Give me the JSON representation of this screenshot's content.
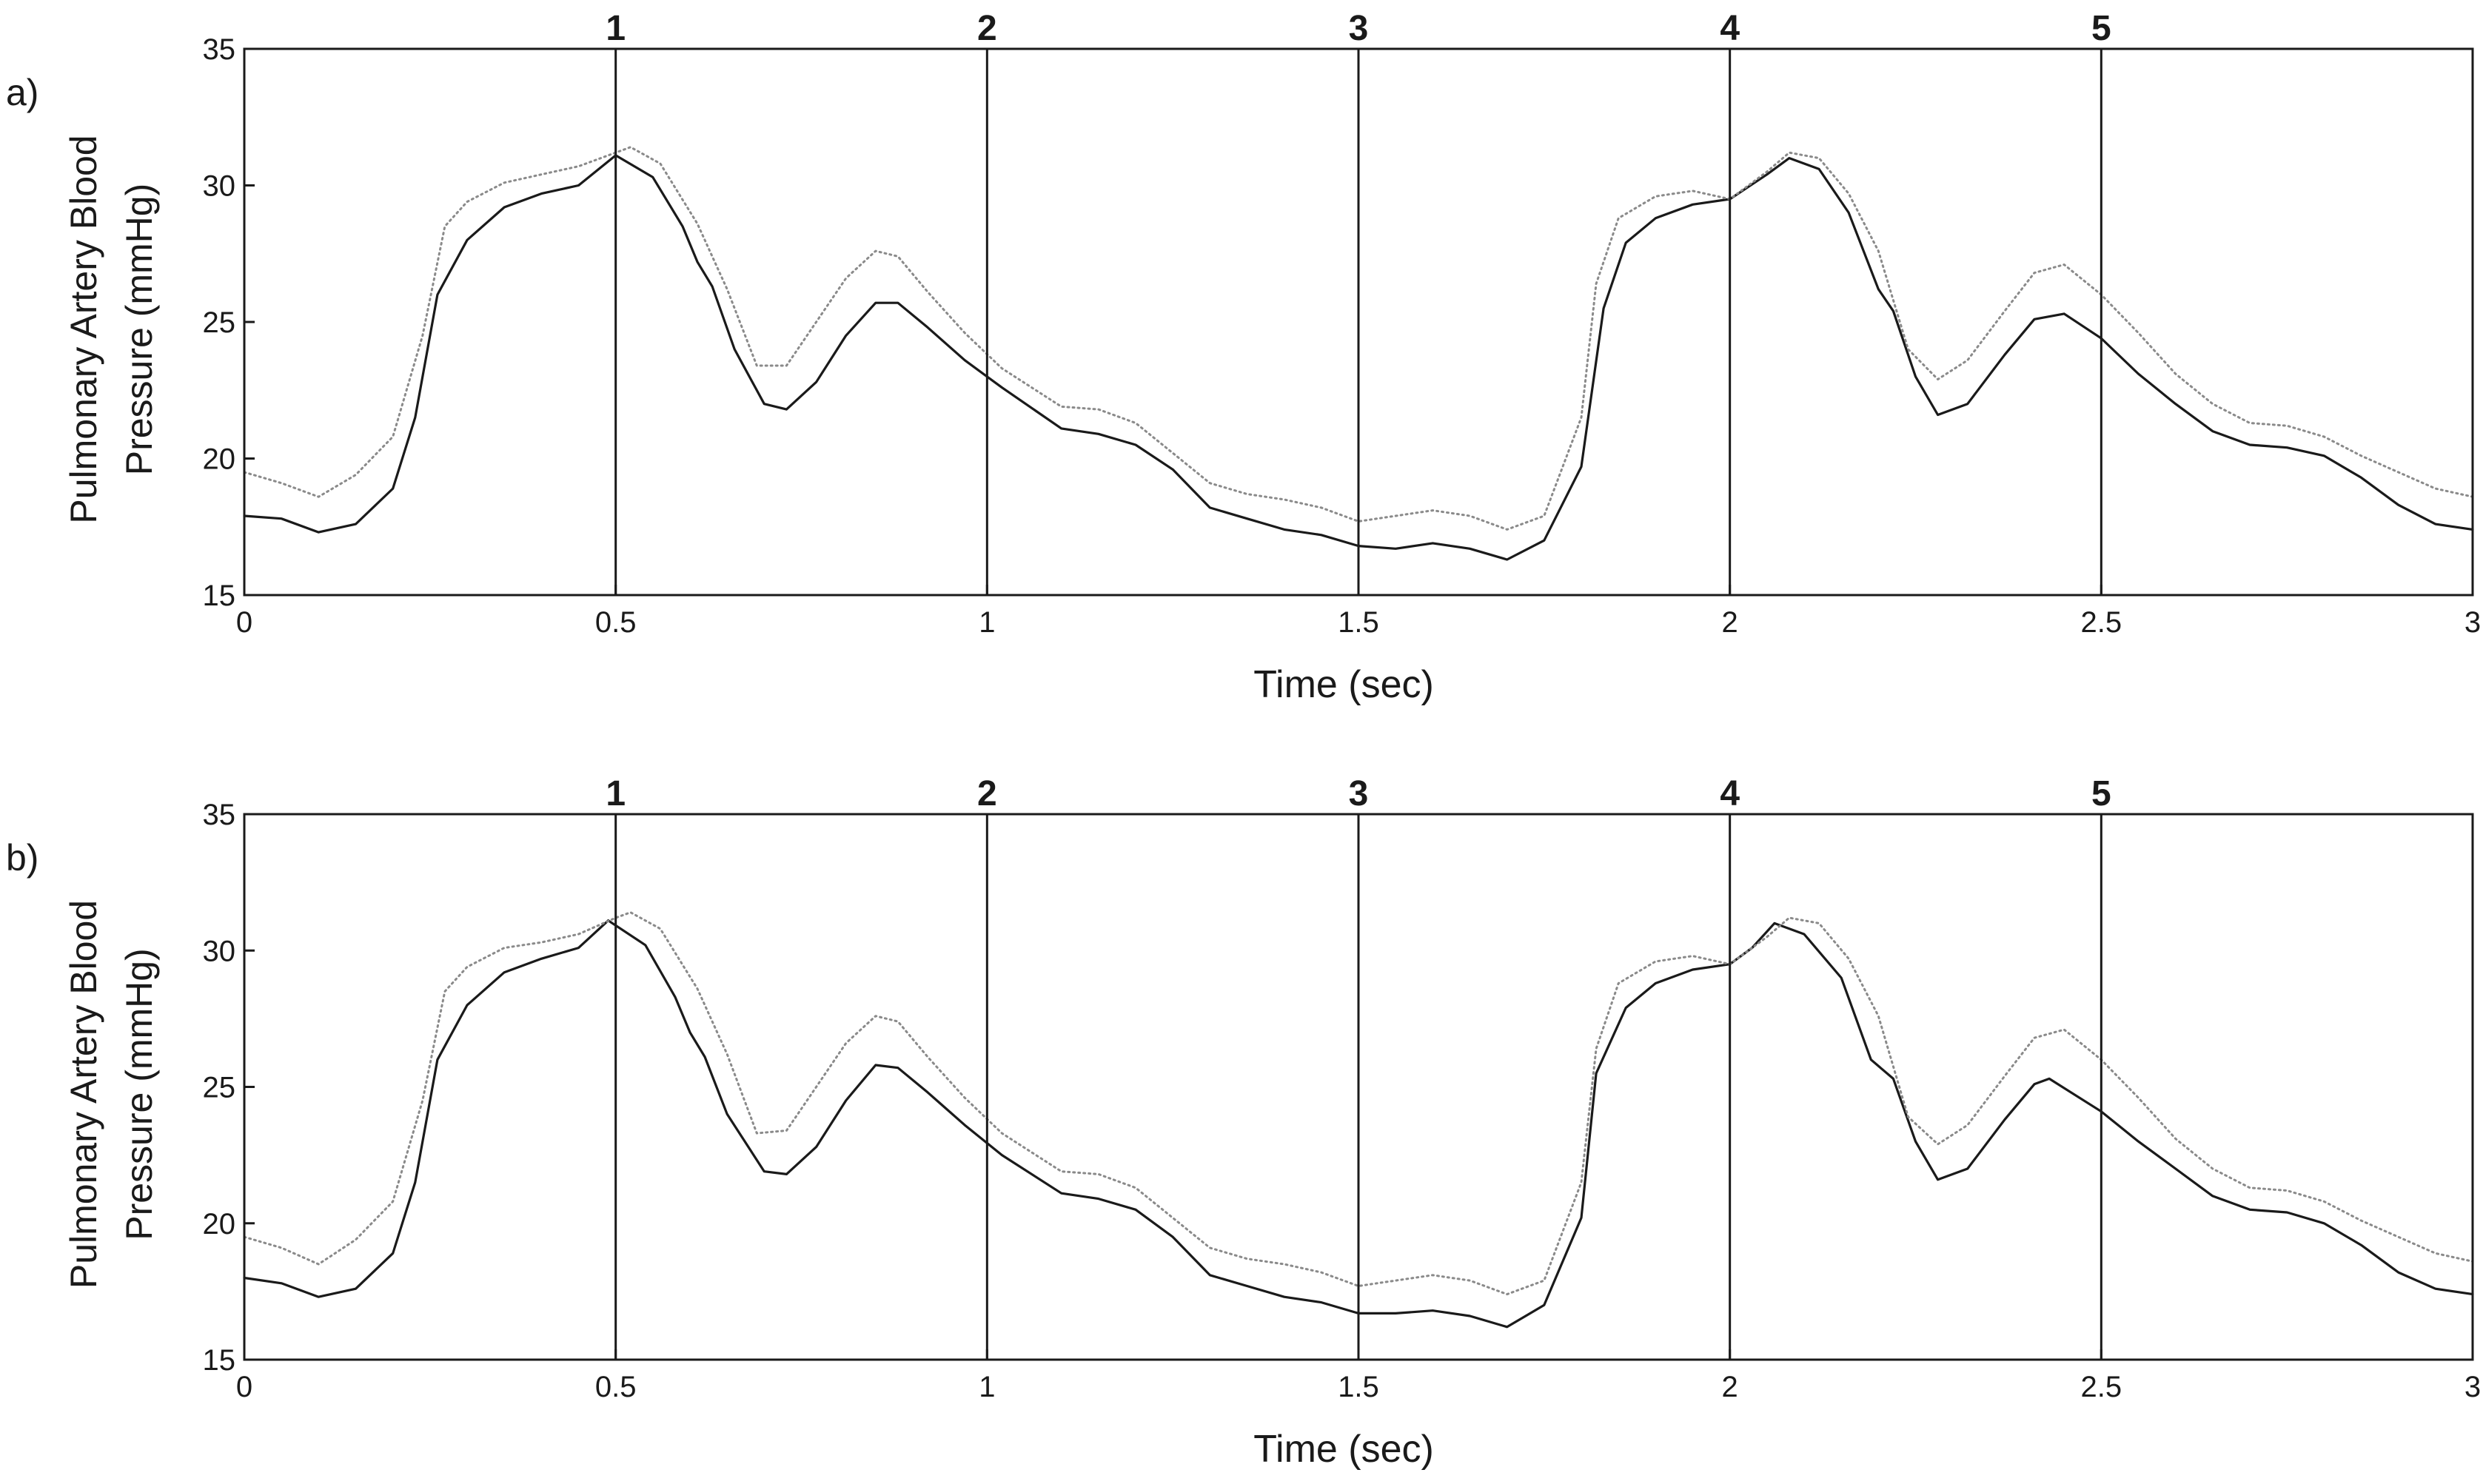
{
  "chart_data": [
    {
      "type": "line",
      "panel_label": "a)",
      "xlabel": "Time (sec)",
      "ylabel_lines": [
        "Pulmonary Artery Blood",
        "Pressure (mmHg)"
      ],
      "xlim": [
        0,
        3
      ],
      "ylim": [
        15,
        35
      ],
      "xticks": [
        0,
        0.5,
        1,
        1.5,
        2,
        2.5,
        3
      ],
      "xtick_labels": [
        "0",
        "0.5",
        "1",
        "1.5",
        "2",
        "2.5",
        "3"
      ],
      "yticks": [
        15,
        20,
        25,
        30,
        35
      ],
      "ytick_labels": [
        "15",
        "20",
        "25",
        "30",
        "35"
      ],
      "grid": false,
      "markers": [
        {
          "label": "1",
          "x": 0.5
        },
        {
          "label": "2",
          "x": 1.0
        },
        {
          "label": "3",
          "x": 1.5
        },
        {
          "label": "4",
          "x": 2.0
        },
        {
          "label": "5",
          "x": 2.5
        }
      ],
      "series": [
        {
          "style": "solid",
          "color": "#1a1a1a",
          "x": [
            0,
            0.05,
            0.1,
            0.15,
            0.2,
            0.23,
            0.26,
            0.3,
            0.35,
            0.4,
            0.45,
            0.5,
            0.55,
            0.59,
            0.61,
            0.63,
            0.66,
            0.7,
            0.73,
            0.77,
            0.81,
            0.85,
            0.88,
            0.92,
            0.97,
            1.02,
            1.1,
            1.15,
            1.2,
            1.25,
            1.3,
            1.35,
            1.4,
            1.45,
            1.5,
            1.55,
            1.6,
            1.65,
            1.7,
            1.75,
            1.8,
            1.83,
            1.86,
            1.9,
            1.95,
            2.0,
            2.05,
            2.08,
            2.12,
            2.16,
            2.2,
            2.22,
            2.25,
            2.28,
            2.32,
            2.37,
            2.41,
            2.45,
            2.5,
            2.55,
            2.6,
            2.65,
            2.7,
            2.75,
            2.8,
            2.85,
            2.9,
            2.95,
            3.0
          ],
          "y": [
            17.9,
            17.8,
            17.3,
            17.6,
            18.9,
            21.5,
            26.0,
            28.0,
            29.2,
            29.7,
            30.0,
            31.1,
            30.3,
            28.5,
            27.2,
            26.3,
            24.0,
            22.0,
            21.8,
            22.8,
            24.5,
            25.7,
            25.7,
            24.8,
            23.6,
            22.6,
            21.1,
            20.9,
            20.5,
            19.6,
            18.2,
            17.8,
            17.4,
            17.2,
            16.8,
            16.7,
            16.9,
            16.7,
            16.3,
            17.0,
            19.7,
            25.5,
            27.9,
            28.8,
            29.3,
            29.5,
            30.4,
            31.0,
            30.6,
            29.0,
            26.2,
            25.4,
            23.0,
            21.6,
            22.0,
            23.8,
            25.1,
            25.3,
            24.4,
            23.1,
            22.0,
            21.0,
            20.5,
            20.4,
            20.1,
            19.3,
            18.3,
            17.6,
            17.4
          ]
        },
        {
          "style": "dotted",
          "color": "#8a8a8a",
          "x": [
            0,
            0.05,
            0.1,
            0.15,
            0.2,
            0.24,
            0.27,
            0.3,
            0.35,
            0.4,
            0.45,
            0.5,
            0.52,
            0.56,
            0.61,
            0.65,
            0.69,
            0.73,
            0.77,
            0.81,
            0.85,
            0.88,
            0.92,
            0.97,
            1.02,
            1.1,
            1.15,
            1.2,
            1.25,
            1.3,
            1.35,
            1.4,
            1.45,
            1.5,
            1.55,
            1.6,
            1.65,
            1.7,
            1.75,
            1.8,
            1.82,
            1.85,
            1.9,
            1.95,
            2.0,
            2.05,
            2.08,
            2.12,
            2.16,
            2.2,
            2.24,
            2.28,
            2.32,
            2.37,
            2.41,
            2.45,
            2.5,
            2.55,
            2.6,
            2.65,
            2.7,
            2.75,
            2.8,
            2.85,
            2.9,
            2.95,
            3.0
          ],
          "y": [
            19.5,
            19.1,
            18.6,
            19.4,
            20.8,
            24.5,
            28.5,
            29.4,
            30.1,
            30.4,
            30.7,
            31.2,
            31.4,
            30.8,
            28.6,
            26.2,
            23.4,
            23.4,
            25.0,
            26.6,
            27.6,
            27.4,
            26.1,
            24.6,
            23.3,
            21.9,
            21.8,
            21.3,
            20.2,
            19.1,
            18.7,
            18.5,
            18.2,
            17.7,
            17.9,
            18.1,
            17.9,
            17.4,
            17.9,
            21.5,
            26.4,
            28.8,
            29.6,
            29.8,
            29.5,
            30.5,
            31.2,
            31.0,
            29.7,
            27.6,
            24.0,
            22.9,
            23.6,
            25.4,
            26.8,
            27.1,
            26.0,
            24.6,
            23.1,
            22.0,
            21.3,
            21.2,
            20.8,
            20.1,
            19.5,
            18.9,
            18.6
          ]
        }
      ]
    },
    {
      "type": "line",
      "panel_label": "b)",
      "xlabel": "Time (sec)",
      "ylabel_lines": [
        "Pulmonary Artery Blood",
        "Pressure (mmHg)"
      ],
      "xlim": [
        0,
        3
      ],
      "ylim": [
        15,
        35
      ],
      "xticks": [
        0,
        0.5,
        1,
        1.5,
        2,
        2.5,
        3
      ],
      "xtick_labels": [
        "0",
        "0.5",
        "1",
        "1.5",
        "2",
        "2.5",
        "3"
      ],
      "yticks": [
        15,
        20,
        25,
        30,
        35
      ],
      "ytick_labels": [
        "15",
        "20",
        "25",
        "30",
        "35"
      ],
      "grid": false,
      "markers": [
        {
          "label": "1",
          "x": 0.5
        },
        {
          "label": "2",
          "x": 1.0
        },
        {
          "label": "3",
          "x": 1.5
        },
        {
          "label": "4",
          "x": 2.0
        },
        {
          "label": "5",
          "x": 2.5
        }
      ],
      "series": [
        {
          "style": "solid",
          "color": "#1a1a1a",
          "x": [
            0,
            0.05,
            0.1,
            0.15,
            0.2,
            0.23,
            0.26,
            0.3,
            0.35,
            0.4,
            0.45,
            0.49,
            0.54,
            0.58,
            0.6,
            0.62,
            0.65,
            0.7,
            0.73,
            0.77,
            0.81,
            0.85,
            0.88,
            0.92,
            0.97,
            1.02,
            1.1,
            1.15,
            1.2,
            1.25,
            1.3,
            1.35,
            1.4,
            1.45,
            1.5,
            1.55,
            1.6,
            1.65,
            1.7,
            1.75,
            1.8,
            1.82,
            1.86,
            1.9,
            1.95,
            2.0,
            2.03,
            2.06,
            2.1,
            2.15,
            2.19,
            2.22,
            2.25,
            2.28,
            2.32,
            2.37,
            2.41,
            2.43,
            2.5,
            2.55,
            2.6,
            2.65,
            2.7,
            2.75,
            2.8,
            2.85,
            2.9,
            2.95,
            3.0
          ],
          "y": [
            18.0,
            17.8,
            17.3,
            17.6,
            18.9,
            21.5,
            26.0,
            28.0,
            29.2,
            29.7,
            30.1,
            31.1,
            30.2,
            28.3,
            27.0,
            26.1,
            24.0,
            21.9,
            21.8,
            22.8,
            24.5,
            25.8,
            25.7,
            24.8,
            23.6,
            22.5,
            21.1,
            20.9,
            20.5,
            19.5,
            18.1,
            17.7,
            17.3,
            17.1,
            16.7,
            16.7,
            16.8,
            16.6,
            16.2,
            17.0,
            20.2,
            25.5,
            27.9,
            28.8,
            29.3,
            29.5,
            30.1,
            31.0,
            30.6,
            29.0,
            26.0,
            25.3,
            23.0,
            21.6,
            22.0,
            23.8,
            25.1,
            25.3,
            24.1,
            23.0,
            22.0,
            21.0,
            20.5,
            20.4,
            20.0,
            19.2,
            18.2,
            17.6,
            17.4
          ]
        },
        {
          "style": "dotted",
          "color": "#8a8a8a",
          "x": [
            0,
            0.05,
            0.1,
            0.15,
            0.2,
            0.24,
            0.27,
            0.3,
            0.35,
            0.4,
            0.45,
            0.5,
            0.52,
            0.56,
            0.61,
            0.65,
            0.69,
            0.73,
            0.77,
            0.81,
            0.85,
            0.88,
            0.92,
            0.97,
            1.02,
            1.1,
            1.15,
            1.2,
            1.25,
            1.3,
            1.35,
            1.4,
            1.45,
            1.5,
            1.55,
            1.6,
            1.65,
            1.7,
            1.75,
            1.8,
            1.82,
            1.85,
            1.9,
            1.95,
            2.0,
            2.05,
            2.08,
            2.12,
            2.16,
            2.2,
            2.24,
            2.28,
            2.32,
            2.37,
            2.41,
            2.45,
            2.5,
            2.55,
            2.6,
            2.65,
            2.7,
            2.75,
            2.8,
            2.85,
            2.9,
            2.95,
            3.0
          ],
          "y": [
            19.5,
            19.1,
            18.5,
            19.4,
            20.8,
            24.5,
            28.5,
            29.4,
            30.1,
            30.3,
            30.6,
            31.2,
            31.4,
            30.8,
            28.6,
            26.2,
            23.3,
            23.4,
            25.0,
            26.6,
            27.6,
            27.4,
            26.1,
            24.6,
            23.3,
            21.9,
            21.8,
            21.3,
            20.2,
            19.1,
            18.7,
            18.5,
            18.2,
            17.7,
            17.9,
            18.1,
            17.9,
            17.4,
            17.9,
            21.5,
            26.4,
            28.8,
            29.6,
            29.8,
            29.5,
            30.5,
            31.2,
            31.0,
            29.7,
            27.6,
            23.9,
            22.9,
            23.6,
            25.4,
            26.8,
            27.1,
            26.0,
            24.6,
            23.1,
            22.0,
            21.3,
            21.2,
            20.8,
            20.1,
            19.5,
            18.9,
            18.6
          ]
        }
      ]
    }
  ]
}
